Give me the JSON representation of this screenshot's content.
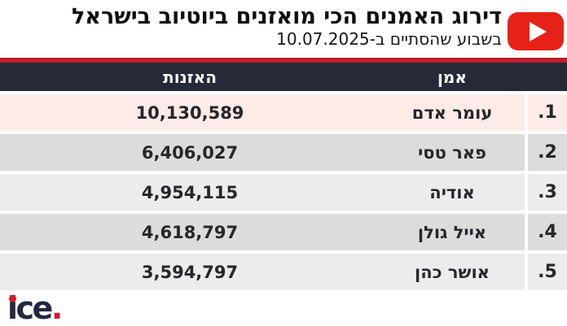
{
  "header": {
    "title": "דירוג האמנים הכי מואזנים ביוטיוב בישראל",
    "subtitle": "בשבוע שהסתיים ב-10.07.2025"
  },
  "table": {
    "columns": {
      "artist": "אמן",
      "listens": "האזנות"
    },
    "rows": [
      {
        "rank": "1.",
        "artist": "עומר אדם",
        "listens": "10,130,589",
        "bg": "row_highlight_pink"
      },
      {
        "rank": "2.",
        "artist": "פאר טסי",
        "listens": "6,406,027",
        "bg": "row_gray"
      },
      {
        "rank": "3.",
        "artist": "אודיה",
        "listens": "4,954,115",
        "bg": "row_light_gray"
      },
      {
        "rank": "4.",
        "artist": "אייל גולן",
        "listens": "4,618,797",
        "bg": "row_gray"
      },
      {
        "rank": "5.",
        "artist": "אושר כהן",
        "listens": "3,594,797",
        "bg": "row_light_gray"
      }
    ]
  },
  "footer": {
    "logo_text": "ice",
    "logo_period": "."
  },
  "colors": {
    "accent_red": "#be1e2d",
    "youtube_red": "#e62117",
    "header_dark": "#272936",
    "row_highlight_pink": "#fcebe6",
    "row_gray": "#dcdcdc",
    "row_light_gray": "#ececec",
    "logo_navy": "#232840",
    "logo_red": "#d7182a"
  },
  "chart_data": {
    "type": "table",
    "title": "דירוג האמנים הכי מואזנים ביוטיוב בישראל",
    "subtitle": "בשבוע שהסתיים ב-10.07.2025",
    "columns": [
      "אמן",
      "האזנות"
    ],
    "rows": [
      [
        "עומר אדם",
        10130589
      ],
      [
        "פאר טסי",
        6406027
      ],
      [
        "אודיה",
        4954115
      ],
      [
        "אייל גולן",
        4618797
      ],
      [
        "אושר כהן",
        3594797
      ]
    ]
  }
}
